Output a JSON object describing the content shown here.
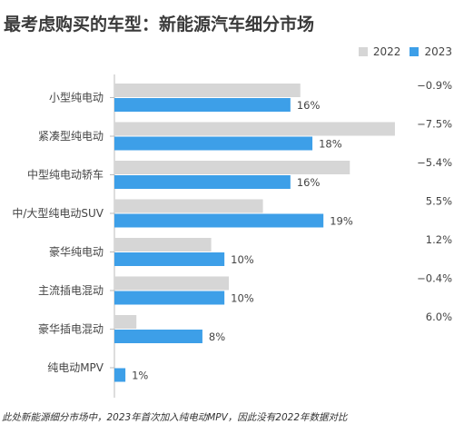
{
  "title": "最考虑购买的车型：新能源汽车细分市场",
  "footnote": "此处新能源细分市场中，2023年首次加入纯电动MPV，因此没有2022年数据对比",
  "colors": {
    "y2022": "#d6d6d6",
    "y2023": "#3d9fe8",
    "axis": "#bbbbbb",
    "text": "#444444"
  },
  "chart_data": {
    "type": "bar",
    "orientation": "horizontal",
    "categories": [
      "小型纯电动",
      "紧凑型纯电动",
      "中型纯电动轿车",
      "中/大型纯电动SUV",
      "豪华纯电动",
      "主流插电混动",
      "豪华插电混动",
      "纯电动MPV"
    ],
    "series": [
      {
        "name": "2022",
        "values": [
          16.9,
          25.5,
          21.4,
          13.5,
          8.8,
          10.4,
          2.0,
          null
        ]
      },
      {
        "name": "2023",
        "values": [
          16,
          18,
          16,
          19,
          10,
          10,
          8,
          1
        ]
      }
    ],
    "data_labels_2023": [
      "16%",
      "18%",
      "16%",
      "19%",
      "10%",
      "10%",
      "8%",
      "1%"
    ],
    "change_labels": [
      "−0.9%",
      "−7.5%",
      "−5.4%",
      "5.5%",
      "1.2%",
      "−0.4%",
      "6.0%",
      ""
    ],
    "xlim": [
      0,
      26
    ],
    "grid": false,
    "legend_position": "top-right"
  }
}
